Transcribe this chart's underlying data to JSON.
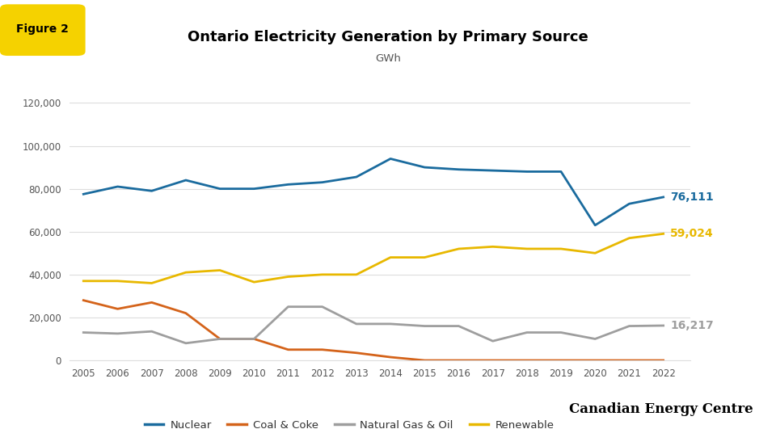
{
  "title": "Ontario Electricity Generation by Primary Source",
  "subtitle": "GWh",
  "figure_label": "Figure 2",
  "years": [
    2005,
    2006,
    2007,
    2008,
    2009,
    2010,
    2011,
    2012,
    2013,
    2014,
    2015,
    2016,
    2017,
    2018,
    2019,
    2020,
    2021,
    2022
  ],
  "nuclear": [
    77500,
    81000,
    79000,
    84000,
    80000,
    80000,
    82000,
    83000,
    85500,
    94000,
    90000,
    89000,
    88500,
    88000,
    88000,
    63000,
    73000,
    76111
  ],
  "coal_coke": [
    28000,
    24000,
    27000,
    22000,
    10000,
    10000,
    5000,
    5000,
    3500,
    1500,
    0,
    0,
    0,
    0,
    0,
    0,
    0,
    0
  ],
  "natural_gas_oil": [
    13000,
    12500,
    13500,
    8000,
    10000,
    10000,
    25000,
    25000,
    17000,
    17000,
    16000,
    16000,
    9000,
    13000,
    13000,
    10000,
    16000,
    16217
  ],
  "renewable": [
    37000,
    37000,
    36000,
    41000,
    42000,
    36500,
    39000,
    40000,
    40000,
    48000,
    48000,
    52000,
    53000,
    52000,
    52000,
    50000,
    57000,
    59024
  ],
  "nuclear_color": "#1a6b9e",
  "coal_color": "#d4631a",
  "gas_color": "#9e9e9e",
  "renewable_color": "#e8b800",
  "nuclear_label": "76,111",
  "gas_label": "16,217",
  "renewable_label": "59,024",
  "ylim": [
    0,
    130000
  ],
  "yticks": [
    0,
    20000,
    40000,
    60000,
    80000,
    100000,
    120000
  ],
  "badge_color": "#f5d200",
  "background_color": "#ffffff",
  "watermark": "Canadian Energy Centre"
}
